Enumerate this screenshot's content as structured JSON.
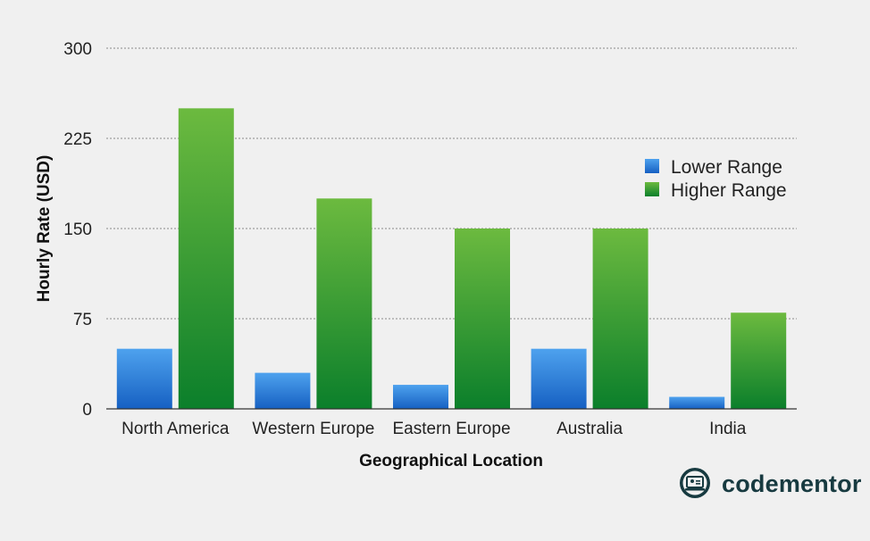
{
  "chart_data": {
    "type": "bar",
    "categories": [
      "North America",
      "Western Europe",
      "Eastern Europe",
      "Australia",
      "India"
    ],
    "series": [
      {
        "name": "Lower Range",
        "values": [
          50,
          30,
          20,
          50,
          10
        ],
        "color": "#2f7fd6"
      },
      {
        "name": "Higher Range",
        "values": [
          250,
          175,
          150,
          150,
          80
        ],
        "color": "#3ea33b"
      }
    ],
    "xlabel": "Geographical Location",
    "ylabel": "Hourly Rate (USD)",
    "ylim": [
      0,
      300
    ],
    "yticks": [
      "0",
      "75",
      "150",
      "225",
      "300"
    ],
    "grid": true,
    "legend_position": "right"
  },
  "brand": {
    "name": "codementor",
    "icon": "codementor-logo-icon",
    "color": "#173a40"
  }
}
